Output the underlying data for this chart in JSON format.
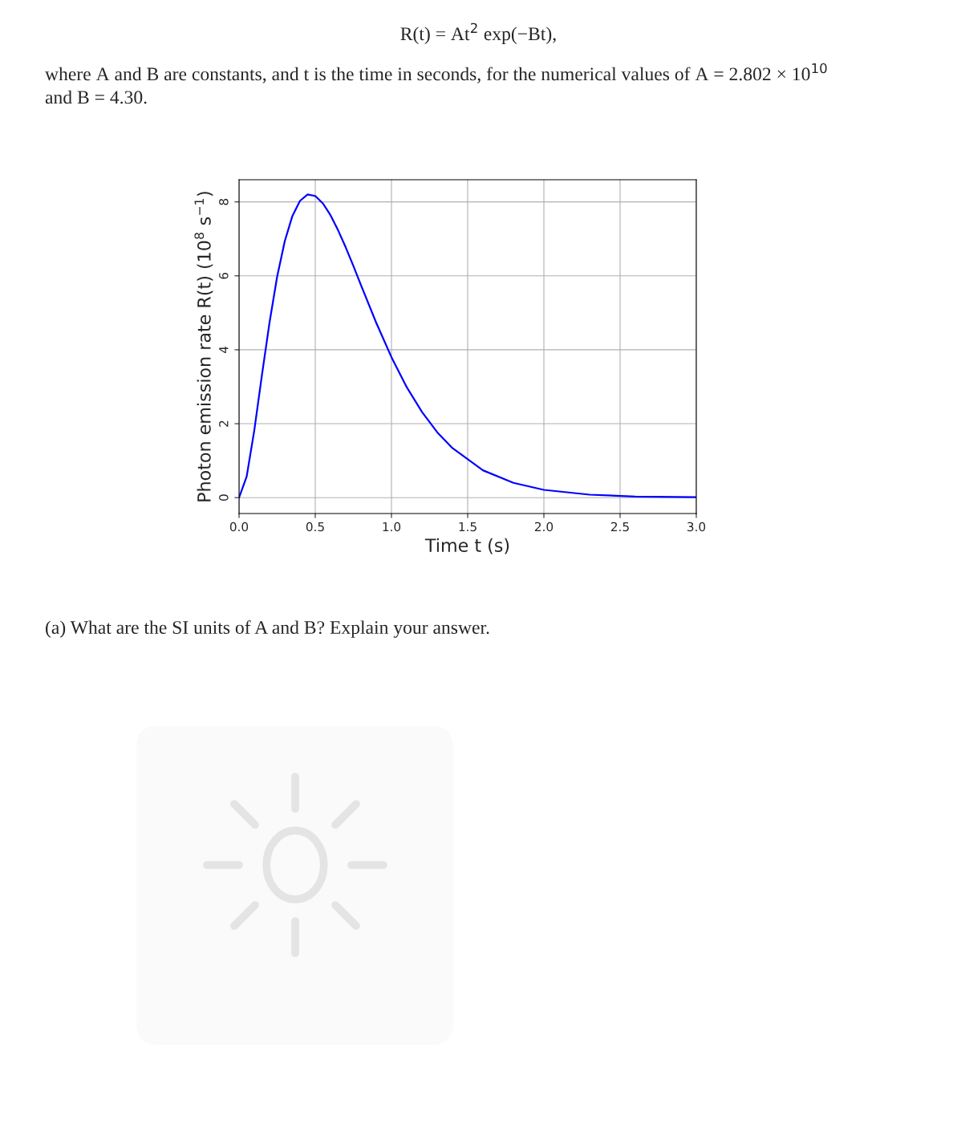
{
  "chart_data": {
    "type": "line",
    "title": "R(t) = At$^{2}$ exp(−Bt),",
    "annotations": [
      "where A and B are constants, and t is the time in seconds, for the numerical values of A = 2.802 × 10$^{10}$\nand B = 4.30.",
      "(a) What are the SI units of A and B? Explain your answer."
    ],
    "xlabel": "Time t (s)",
    "ylabel": "Photon emission rate R(t) (10$^{8}$ s$^{−1}$)",
    "x": [
      0,
      0.05,
      0.1,
      0.15,
      0.2,
      0.25,
      0.3,
      0.35,
      0.4,
      0.45,
      0.5,
      0.55,
      0.6,
      0.65,
      0.7,
      0.75,
      0.8,
      0.9,
      1.0,
      1.1,
      1.2,
      1.3,
      1.4,
      1.6,
      1.8,
      2.0,
      2.3,
      2.6,
      3.0
    ],
    "series": [
      {
        "color": "#0000ff",
        "values": [
          0,
          0.57,
          1.82,
          3.31,
          4.74,
          5.98,
          6.94,
          7.62,
          8.03,
          8.2,
          8.16,
          7.96,
          7.64,
          7.23,
          6.77,
          6.27,
          5.75,
          4.73,
          3.8,
          2.99,
          2.32,
          1.77,
          1.34,
          0.74,
          0.4,
          0.21,
          0.08,
          0.03,
          0.01
        ]
      }
    ],
    "xlim": [
      0,
      3
    ],
    "ylim": [
      -0.43,
      8.6
    ],
    "xticks": [
      {
        "value": 0,
        "label": "0.0"
      },
      0.5,
      {
        "value": 1,
        "label": "1.0"
      },
      1.5,
      {
        "value": 2,
        "label": "2.0"
      },
      2.5,
      {
        "value": 3,
        "label": "3.0"
      }
    ],
    "yticks": [
      0,
      2,
      4,
      6,
      8
    ],
    "grid": true,
    "line_style": "solid",
    "marker": "none"
  }
}
